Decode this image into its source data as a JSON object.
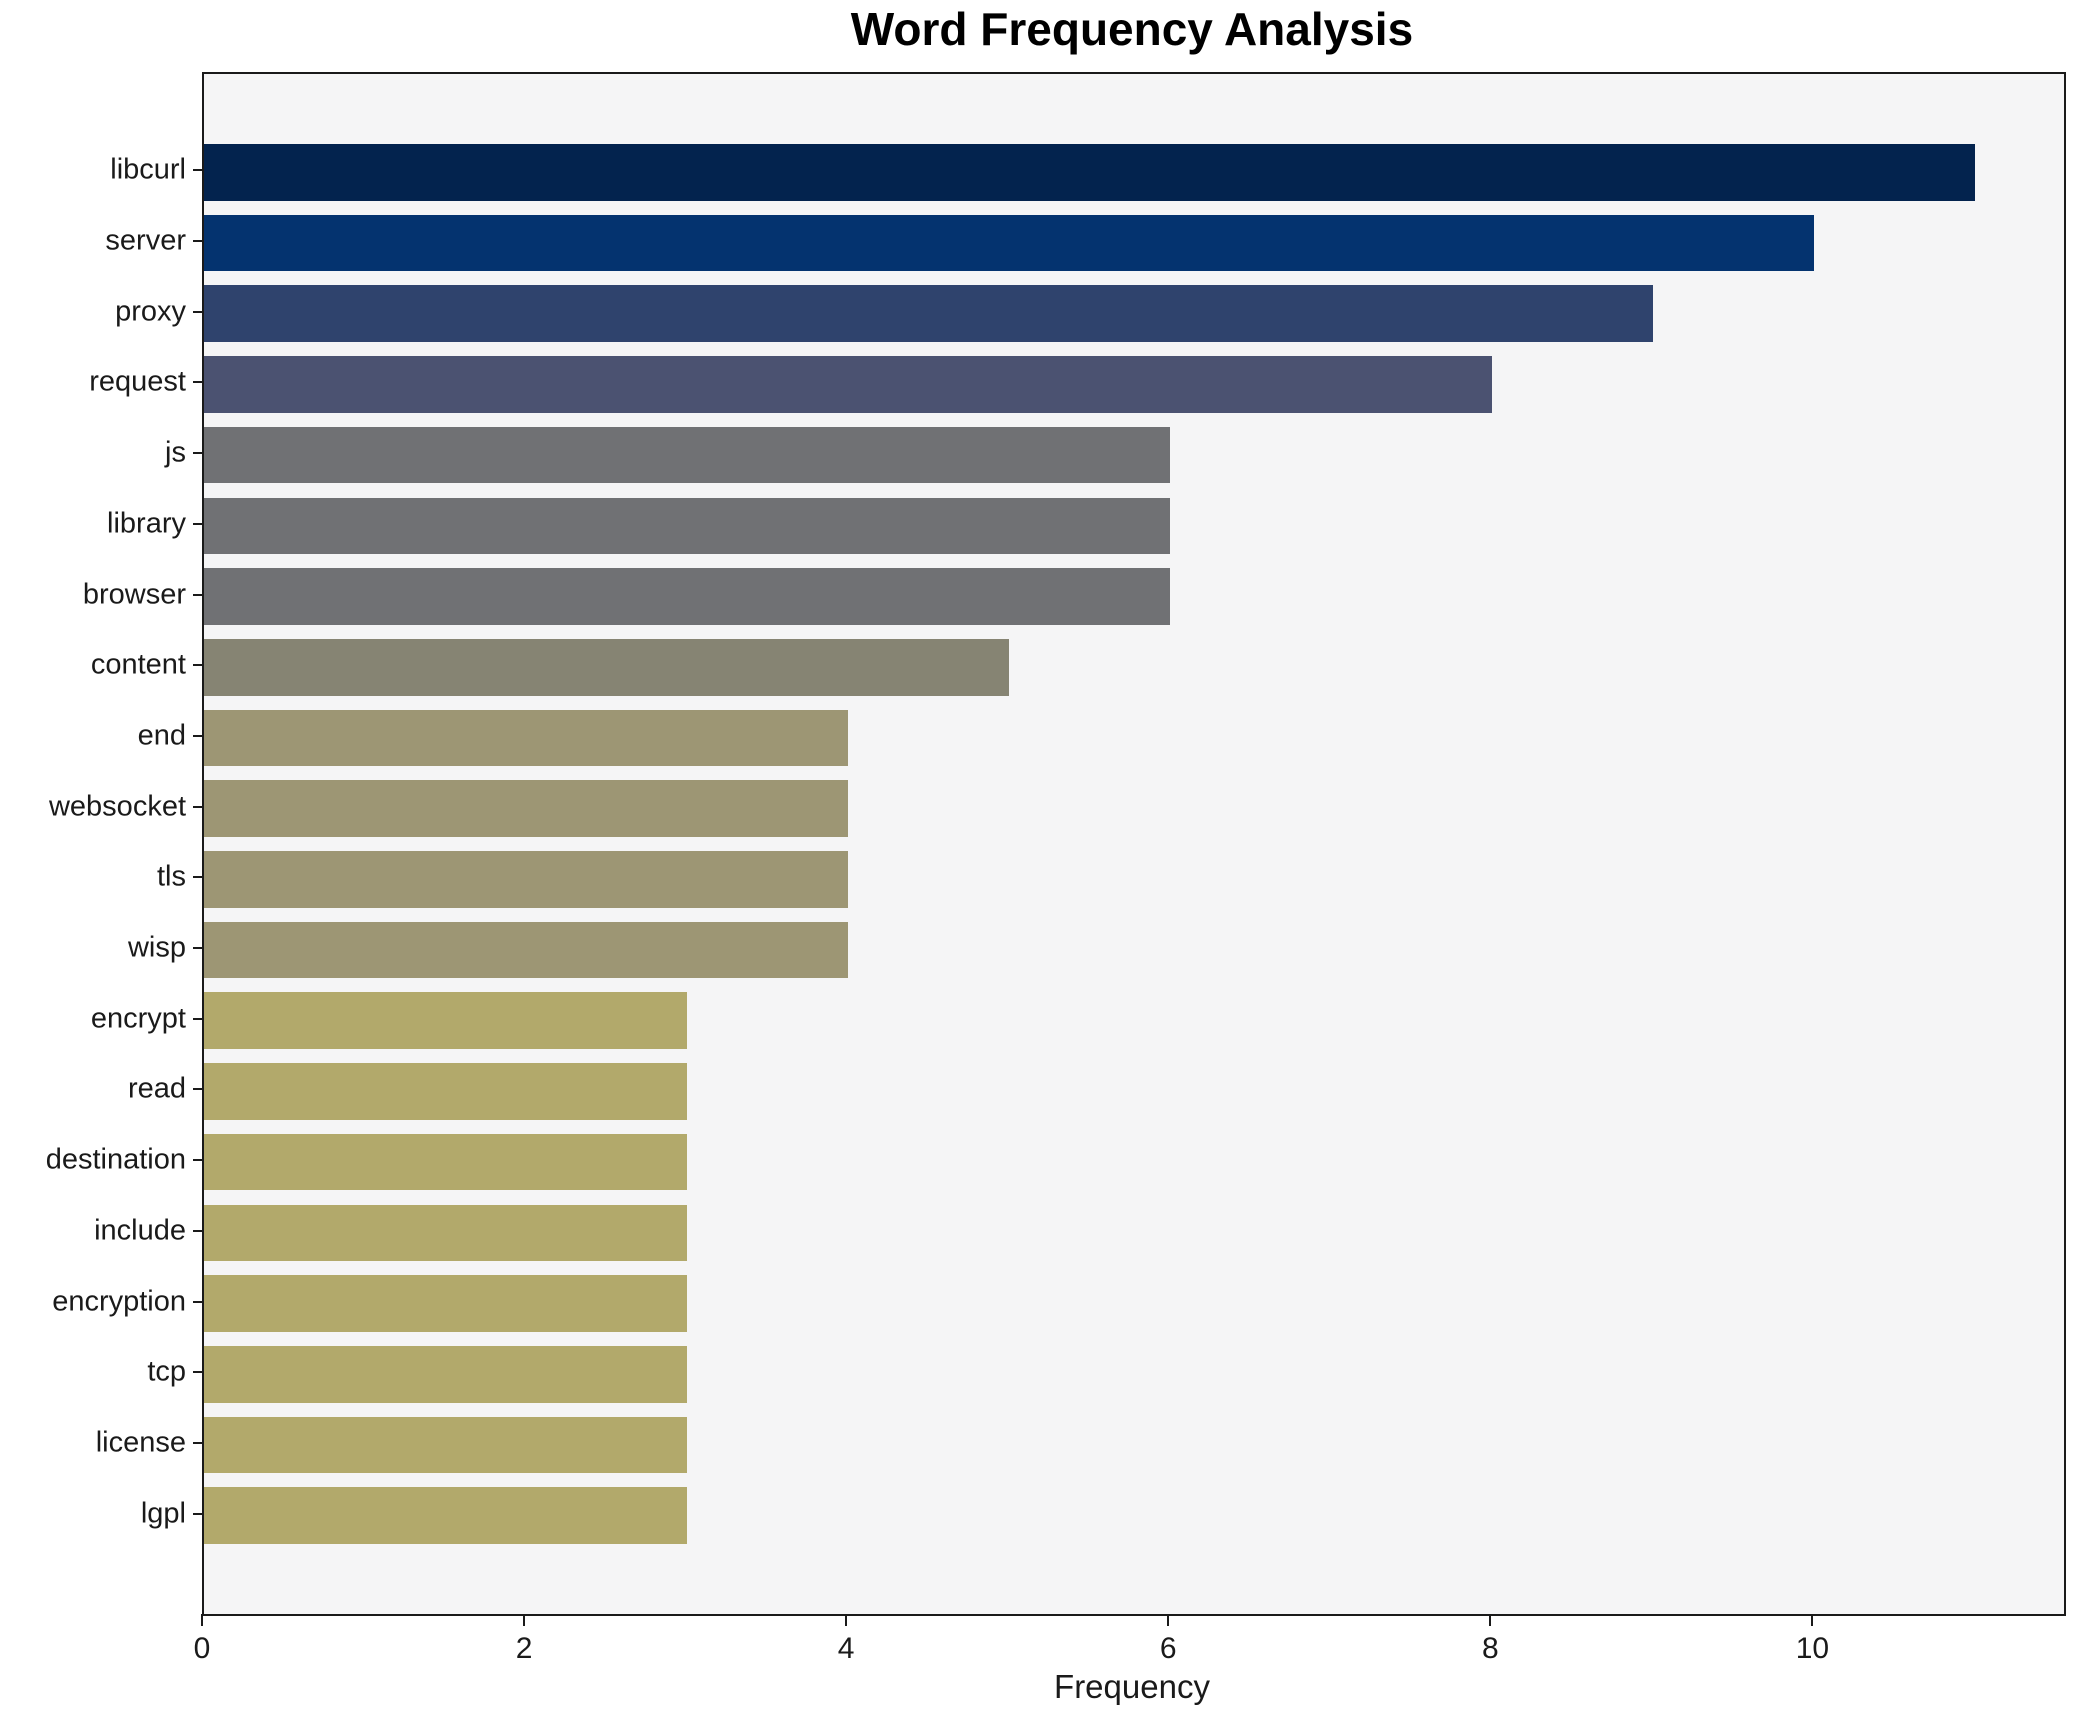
{
  "chart_data": {
    "type": "bar",
    "orientation": "horizontal",
    "title": "Word Frequency Analysis",
    "xlabel": "Frequency",
    "ylabel": "",
    "grid": false,
    "legend": false,
    "xlim": [
      0,
      11.55
    ],
    "xticks": [
      0,
      2,
      4,
      6,
      8,
      10
    ],
    "categories": [
      "libcurl",
      "server",
      "proxy",
      "request",
      "js",
      "library",
      "browser",
      "content",
      "end",
      "websocket",
      "tls",
      "wisp",
      "encrypt",
      "read",
      "destination",
      "include",
      "encryption",
      "tcp",
      "license",
      "lgpl"
    ],
    "values": [
      11,
      10,
      9,
      8,
      6,
      6,
      6,
      5,
      4,
      4,
      4,
      4,
      3,
      3,
      3,
      3,
      3,
      3,
      3,
      3
    ],
    "bar_colors": [
      "#03234e",
      "#04336f",
      "#2f436d",
      "#4b5271",
      "#707174",
      "#707174",
      "#707174",
      "#868473",
      "#9d9674",
      "#9d9674",
      "#9d9674",
      "#9d9674",
      "#b2a96b",
      "#b2a96b",
      "#b2a96b",
      "#b2a96b",
      "#b2a96b",
      "#b2a96b",
      "#b2a96b",
      "#b2a96b"
    ],
    "colors": {
      "plot_background": "#f5f5f6",
      "figure_background": "#ffffff",
      "spine": "#1a1a1a",
      "text": "#1a1a1a"
    }
  }
}
